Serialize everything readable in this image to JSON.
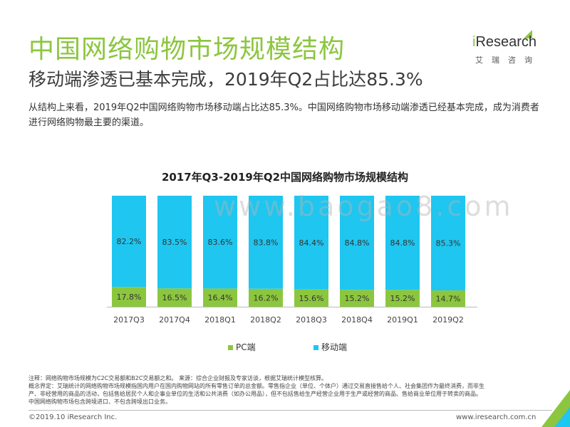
{
  "header": {
    "title": "中国网络购物市场规模结构",
    "subtitle": "移动端渗透已基本完成，2019年Q2占比达85.3%",
    "description": "从结构上来看，2019年Q2中国网络购物市场移动端占比达85.3%。中国网络购物市场移动端渗透已经基本完成，成为消费者进行网络购物最主要的渠道。"
  },
  "logo": {
    "brand_prefix": "i",
    "brand_rest": "Research",
    "chinese": "艾瑞咨询"
  },
  "watermark": "www.baogao8.com",
  "chart_data": {
    "type": "bar",
    "stacked": true,
    "title": "2017年Q3-2019年Q2中国网络购物市场规模结构",
    "categories": [
      "2017Q3",
      "2017Q4",
      "2018Q1",
      "2018Q2",
      "2018Q3",
      "2018Q4",
      "2019Q1",
      "2019Q2"
    ],
    "series": [
      {
        "name": "PC端",
        "color": "#8cc63f",
        "values": [
          17.8,
          16.5,
          16.4,
          16.2,
          15.6,
          15.2,
          15.2,
          14.7
        ],
        "labels": [
          "17.8%",
          "16.5%",
          "16.4%",
          "16.2%",
          "15.6%",
          "15.2%",
          "15.2%",
          "14.7%"
        ]
      },
      {
        "name": "移动端",
        "color": "#1ec6f0",
        "values": [
          82.2,
          83.5,
          83.6,
          83.8,
          84.4,
          84.8,
          84.8,
          85.3
        ],
        "labels": [
          "82.2%",
          "83.5%",
          "83.6%",
          "83.8%",
          "84.4%",
          "84.8%",
          "84.8%",
          "85.3%"
        ]
      }
    ],
    "ylim": [
      0,
      100
    ],
    "grid": false,
    "legend": "bottom"
  },
  "notes": {
    "line1": "注释：网络购物市场规模为C2C交易额和B2C交易额之和。 来源：综合企业财报及专家访谈，根据艾瑞统计模型核算。",
    "line2": "概念界定：艾瑞统计的网络购物市场规模指国内用户在国内购物网站的所有零售订单的总金额。零售指企业（单位、个体户）通过交易直接售给个人、社会集团作为最终消费，而非生",
    "line3": "产、非经营用的商品的活动，包括售给居民个人和企事业单位的生活和公共消费（如办公用品），但不包括售给生产经营企业用于生产或经营的商品、售给商业单位用于转卖的商品。",
    "line4": "中国网络购物市场包含跨境进口、不包含跨境出口业务。"
  },
  "footer": {
    "copyright": "©2019.10 iResearch Inc.",
    "website": "www.iresearch.com.cn",
    "page": "5"
  }
}
